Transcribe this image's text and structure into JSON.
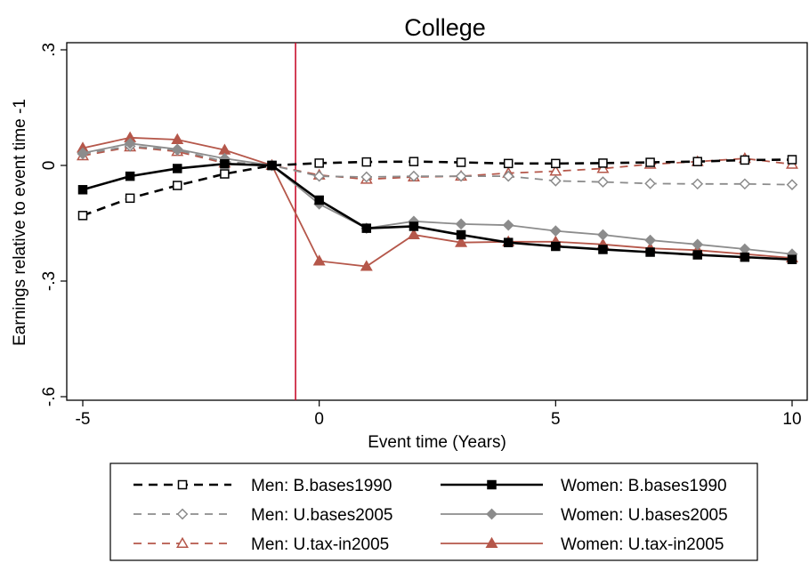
{
  "chart_data": {
    "type": "line",
    "title": "College",
    "xlabel": "Event time (Years)",
    "ylabel": "Earnings relative to event time -1",
    "xlim": [
      -5,
      10
    ],
    "ylim": [
      -0.65,
      0.3
    ],
    "x_ticks": [
      -5,
      0,
      5,
      10
    ],
    "x_tick_labels": [
      "-5",
      "0",
      "5",
      "10"
    ],
    "y_ticks": [
      0.3,
      0,
      -0.3,
      -0.6
    ],
    "y_tick_labels": [
      ".3",
      "0",
      "-.3",
      "-.6"
    ],
    "vline_x": -0.5,
    "vline_color": "#c8102e",
    "grid": false,
    "legend_position": "bottom",
    "x": [
      -5,
      -4,
      -3,
      -2,
      -1,
      0,
      1,
      2,
      3,
      4,
      5,
      6,
      7,
      8,
      9,
      10
    ],
    "series": [
      {
        "name": "Men: B.bases1990",
        "color": "#000000",
        "dashed": true,
        "marker": "square-hollow",
        "values": [
          -0.13,
          -0.085,
          -0.052,
          -0.022,
          0.0,
          0.006,
          0.009,
          0.01,
          0.008,
          0.005,
          0.005,
          0.006,
          0.008,
          0.01,
          0.014,
          0.015
        ]
      },
      {
        "name": "Women: B.bases1990",
        "color": "#000000",
        "dashed": false,
        "marker": "square-filled",
        "values": [
          -0.063,
          -0.028,
          -0.008,
          0.004,
          0.0,
          -0.09,
          -0.163,
          -0.158,
          -0.18,
          -0.2,
          -0.21,
          -0.218,
          -0.225,
          -0.232,
          -0.238,
          -0.244
        ]
      },
      {
        "name": "Men: U.bases2005",
        "color": "#8c8c8c",
        "dashed": true,
        "marker": "diamond-hollow",
        "values": [
          0.03,
          0.05,
          0.04,
          0.01,
          0.0,
          -0.028,
          -0.03,
          -0.028,
          -0.028,
          -0.028,
          -0.04,
          -0.043,
          -0.047,
          -0.048,
          -0.048,
          -0.05
        ]
      },
      {
        "name": "Women: U.bases2005",
        "color": "#8c8c8c",
        "dashed": false,
        "marker": "diamond-filled",
        "values": [
          0.032,
          0.057,
          0.042,
          0.018,
          0.0,
          -0.1,
          -0.163,
          -0.145,
          -0.152,
          -0.155,
          -0.17,
          -0.18,
          -0.194,
          -0.205,
          -0.217,
          -0.23
        ]
      },
      {
        "name": "Men: U.tax-in2005",
        "color": "#b5574a",
        "dashed": true,
        "marker": "triangle-hollow",
        "values": [
          0.025,
          0.048,
          0.036,
          0.006,
          0.0,
          -0.025,
          -0.036,
          -0.03,
          -0.028,
          -0.02,
          -0.015,
          -0.008,
          0.003,
          0.01,
          0.018,
          0.003
        ]
      },
      {
        "name": "Women: U.tax-in2005",
        "color": "#b5574a",
        "dashed": false,
        "marker": "triangle-filled",
        "values": [
          0.045,
          0.072,
          0.067,
          0.04,
          0.0,
          -0.248,
          -0.262,
          -0.18,
          -0.2,
          -0.198,
          -0.198,
          -0.205,
          -0.215,
          -0.22,
          -0.23,
          -0.24
        ]
      }
    ]
  }
}
